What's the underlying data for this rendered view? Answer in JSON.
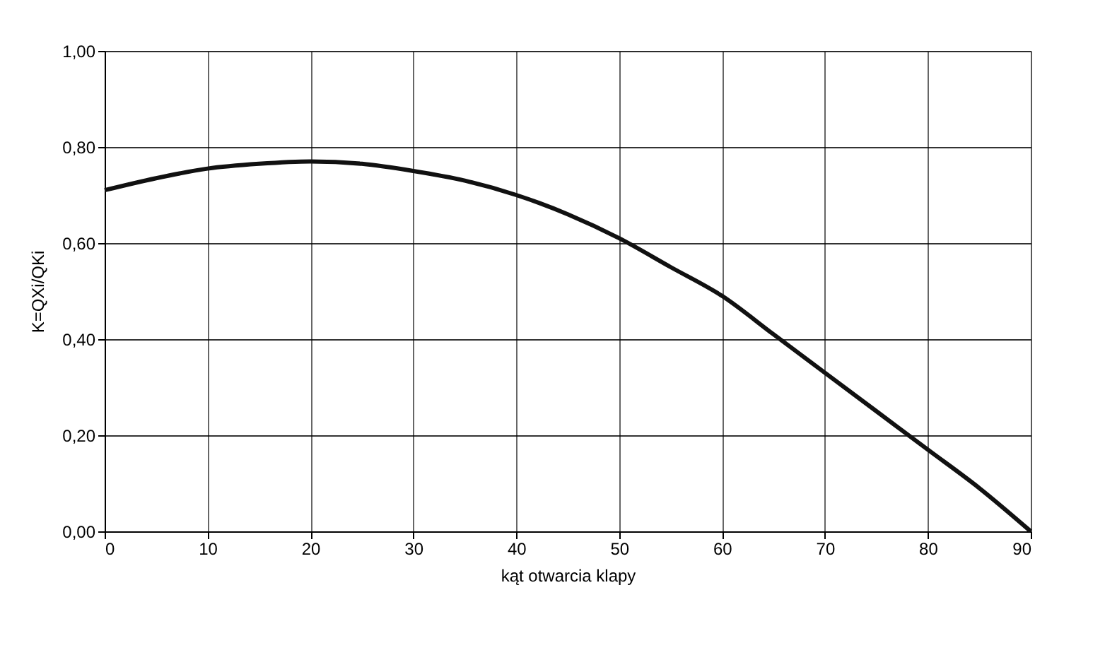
{
  "chart_data": {
    "type": "line",
    "xlabel": "kąt otwarcia klapy",
    "ylabel": "K=QXi/QKi",
    "series": [
      {
        "color": "#111111",
        "x": [
          0,
          5,
          10,
          15,
          20,
          25,
          30,
          35,
          40,
          45,
          50,
          55,
          60,
          65,
          70,
          75,
          80,
          85,
          90
        ],
        "values": [
          0.71,
          0.735,
          0.755,
          0.765,
          0.77,
          0.765,
          0.75,
          0.73,
          0.7,
          0.66,
          0.61,
          0.55,
          0.49,
          0.41,
          0.33,
          0.25,
          0.17,
          0.09,
          0.0
        ]
      }
    ],
    "xlim": [
      0,
      90
    ],
    "xticks": [
      0,
      10,
      20,
      30,
      40,
      50,
      60,
      70,
      80,
      90
    ],
    "ylim": [
      0,
      1
    ],
    "yticks": [
      {
        "value": 0,
        "label": "0,00"
      },
      {
        "value": 0.2,
        "label": "0,20"
      },
      {
        "value": 0.4,
        "label": "0,40"
      },
      {
        "value": 0.6,
        "label": "0,60"
      },
      {
        "value": 0.8,
        "label": "0,80"
      },
      {
        "value": 1,
        "label": "1,00"
      }
    ],
    "grid": true,
    "marker": "none",
    "line_style": "solid"
  }
}
